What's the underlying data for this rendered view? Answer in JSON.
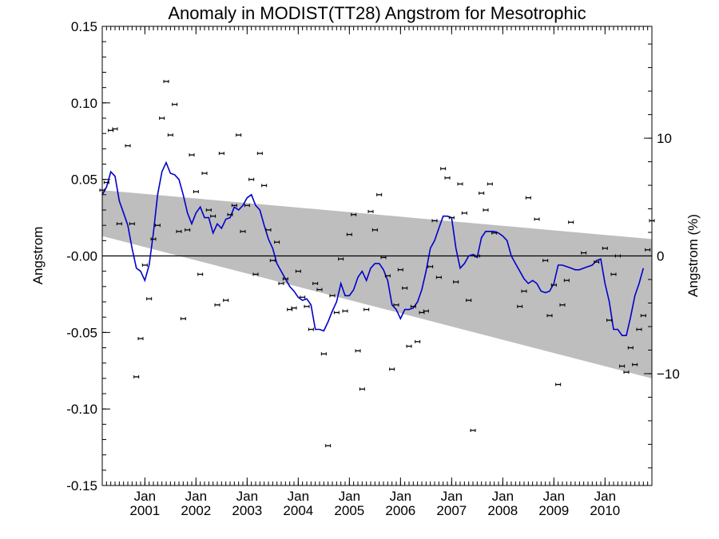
{
  "chart_data": {
    "type": "scatter",
    "title": "Anomaly in MODIST(TT28) Angstrom for Mesotrophic",
    "ylabel": "Angstrom",
    "ylabel_right": "Angstrom (%)",
    "xlim": [
      "2000-03-01",
      "2010-12-01"
    ],
    "ylim": [
      -0.15,
      0.15
    ],
    "ylim_right_percent": [
      -19.5,
      19.5
    ],
    "y_ticks": [
      0.15,
      0.1,
      0.05,
      0.0,
      -0.05,
      -0.1,
      -0.15
    ],
    "y_tick_labels": [
      "0.15",
      "0.10",
      "0.05",
      "-0.00",
      "-0.05",
      "-0.10",
      "-0.15"
    ],
    "y_right_ticks": [
      10,
      0,
      -10
    ],
    "y_right_tick_labels": [
      "10",
      "0",
      "−10"
    ],
    "x_ticks": [
      {
        "month": "Jan",
        "year": "2001",
        "date": "2001-01-01"
      },
      {
        "month": "Jan",
        "year": "2002",
        "date": "2002-01-01"
      },
      {
        "month": "Jan",
        "year": "2003",
        "date": "2003-01-01"
      },
      {
        "month": "Jan",
        "year": "2004",
        "date": "2004-01-01"
      },
      {
        "month": "Jan",
        "year": "2005",
        "date": "2005-01-01"
      },
      {
        "month": "Jan",
        "year": "2006",
        "date": "2006-01-01"
      },
      {
        "month": "Jan",
        "year": "2007",
        "date": "2007-01-01"
      },
      {
        "month": "Jan",
        "year": "2008",
        "date": "2008-01-01"
      },
      {
        "month": "Jan",
        "year": "2009",
        "date": "2009-01-01"
      },
      {
        "month": "Jan",
        "year": "2010",
        "date": "2010-01-01"
      }
    ],
    "zero_line": 0.0,
    "trend_band": {
      "upper": [
        {
          "x": "2000-03-01",
          "y": 0.043
        },
        {
          "x": "2010-12-01",
          "y": 0.011
        }
      ],
      "lower": [
        {
          "x": "2000-03-01",
          "y": 0.013
        },
        {
          "x": "2010-12-01",
          "y": -0.08
        }
      ],
      "color": "#bebebe"
    },
    "scatter_series": {
      "marker": "error-bar",
      "color": "#000000",
      "points": [
        {
          "x": "2000-03",
          "y": 0.043
        },
        {
          "x": "2000-04",
          "y": 0.048
        },
        {
          "x": "2000-05",
          "y": 0.082
        },
        {
          "x": "2000-06",
          "y": 0.083
        },
        {
          "x": "2000-07",
          "y": 0.021
        },
        {
          "x": "2000-09",
          "y": 0.072
        },
        {
          "x": "2000-10",
          "y": 0.021
        },
        {
          "x": "2000-11",
          "y": -0.079
        },
        {
          "x": "2000-12",
          "y": -0.054
        },
        {
          "x": "2001-01",
          "y": -0.006
        },
        {
          "x": "2001-02",
          "y": -0.028
        },
        {
          "x": "2001-03",
          "y": 0.011
        },
        {
          "x": "2001-04",
          "y": 0.02
        },
        {
          "x": "2001-05",
          "y": 0.09
        },
        {
          "x": "2001-06",
          "y": 0.114
        },
        {
          "x": "2001-07",
          "y": 0.079
        },
        {
          "x": "2001-08",
          "y": 0.099
        },
        {
          "x": "2001-09",
          "y": 0.016
        },
        {
          "x": "2001-10",
          "y": -0.041
        },
        {
          "x": "2001-11",
          "y": 0.017
        },
        {
          "x": "2001-12",
          "y": 0.066
        },
        {
          "x": "2002-01",
          "y": 0.042
        },
        {
          "x": "2002-02",
          "y": -0.012
        },
        {
          "x": "2002-03",
          "y": 0.054
        },
        {
          "x": "2002-04",
          "y": 0.03
        },
        {
          "x": "2002-05",
          "y": 0.026
        },
        {
          "x": "2002-06",
          "y": -0.032
        },
        {
          "x": "2002-07",
          "y": 0.067
        },
        {
          "x": "2002-08",
          "y": -0.029
        },
        {
          "x": "2002-09",
          "y": 0.027
        },
        {
          "x": "2002-10",
          "y": 0.033
        },
        {
          "x": "2002-11",
          "y": 0.079
        },
        {
          "x": "2002-12",
          "y": 0.016
        },
        {
          "x": "2003-01",
          "y": 0.033
        },
        {
          "x": "2003-02",
          "y": 0.05
        },
        {
          "x": "2003-03",
          "y": -0.012
        },
        {
          "x": "2003-04",
          "y": 0.067
        },
        {
          "x": "2003-05",
          "y": 0.046
        },
        {
          "x": "2003-06",
          "y": 0.017
        },
        {
          "x": "2003-07",
          "y": -0.003
        },
        {
          "x": "2003-08",
          "y": 0.009
        },
        {
          "x": "2003-09",
          "y": -0.018
        },
        {
          "x": "2003-10",
          "y": -0.015
        },
        {
          "x": "2003-11",
          "y": -0.035
        },
        {
          "x": "2003-12",
          "y": -0.034
        },
        {
          "x": "2004-01",
          "y": -0.01
        },
        {
          "x": "2004-02",
          "y": -0.027
        },
        {
          "x": "2004-03",
          "y": -0.033
        },
        {
          "x": "2004-04",
          "y": -0.048
        },
        {
          "x": "2004-05",
          "y": -0.018
        },
        {
          "x": "2004-06",
          "y": -0.022
        },
        {
          "x": "2004-07",
          "y": -0.064
        },
        {
          "x": "2004-08",
          "y": -0.124
        },
        {
          "x": "2004-09",
          "y": -0.026
        },
        {
          "x": "2004-10",
          "y": -0.037
        },
        {
          "x": "2004-11",
          "y": -0.002
        },
        {
          "x": "2004-12",
          "y": -0.036
        },
        {
          "x": "2005-01",
          "y": 0.014
        },
        {
          "x": "2005-02",
          "y": 0.027
        },
        {
          "x": "2005-03",
          "y": -0.062
        },
        {
          "x": "2005-04",
          "y": -0.087
        },
        {
          "x": "2005-05",
          "y": -0.035
        },
        {
          "x": "2005-06",
          "y": 0.029
        },
        {
          "x": "2005-07",
          "y": 0.017
        },
        {
          "x": "2005-08",
          "y": 0.04
        },
        {
          "x": "2005-09",
          "y": -0.001
        },
        {
          "x": "2005-10",
          "y": -0.013
        },
        {
          "x": "2005-11",
          "y": -0.074
        },
        {
          "x": "2005-12",
          "y": -0.032
        },
        {
          "x": "2006-01",
          "y": -0.009
        },
        {
          "x": "2006-02",
          "y": -0.021
        },
        {
          "x": "2006-03",
          "y": -0.059
        },
        {
          "x": "2006-04",
          "y": -0.033
        },
        {
          "x": "2006-05",
          "y": -0.056
        },
        {
          "x": "2006-06",
          "y": -0.037
        },
        {
          "x": "2006-07",
          "y": -0.036
        },
        {
          "x": "2006-08",
          "y": -0.007
        },
        {
          "x": "2006-09",
          "y": 0.023
        },
        {
          "x": "2006-10",
          "y": -0.014
        },
        {
          "x": "2006-11",
          "y": 0.057
        },
        {
          "x": "2006-12",
          "y": 0.051
        },
        {
          "x": "2007-01",
          "y": 0.025
        },
        {
          "x": "2007-02",
          "y": -0.017
        },
        {
          "x": "2007-03",
          "y": 0.047
        },
        {
          "x": "2007-04",
          "y": 0.028
        },
        {
          "x": "2007-05",
          "y": -0.029
        },
        {
          "x": "2007-06",
          "y": -0.114
        },
        {
          "x": "2007-07",
          "y": 0.0
        },
        {
          "x": "2007-08",
          "y": 0.041
        },
        {
          "x": "2007-09",
          "y": 0.03
        },
        {
          "x": "2007-10",
          "y": 0.047
        },
        {
          "x": "2007-11",
          "y": 0.015
        },
        {
          "x": "2008-05",
          "y": -0.033
        },
        {
          "x": "2008-06",
          "y": -0.023
        },
        {
          "x": "2008-07",
          "y": 0.038
        },
        {
          "x": "2008-09",
          "y": 0.024
        },
        {
          "x": "2008-11",
          "y": -0.003
        },
        {
          "x": "2008-12",
          "y": -0.039
        },
        {
          "x": "2009-01",
          "y": -0.019
        },
        {
          "x": "2009-02",
          "y": -0.084
        },
        {
          "x": "2009-03",
          "y": -0.032
        },
        {
          "x": "2009-04",
          "y": -0.016
        },
        {
          "x": "2009-05",
          "y": 0.022
        },
        {
          "x": "2009-08",
          "y": 0.002
        },
        {
          "x": "2009-11",
          "y": -0.004
        },
        {
          "x": "2010-01",
          "y": 0.005
        },
        {
          "x": "2010-02",
          "y": -0.042
        },
        {
          "x": "2010-03",
          "y": -0.012
        },
        {
          "x": "2010-04",
          "y": 0.0
        },
        {
          "x": "2010-05",
          "y": -0.072
        },
        {
          "x": "2010-06",
          "y": -0.076
        },
        {
          "x": "2010-07",
          "y": -0.06
        },
        {
          "x": "2010-08",
          "y": -0.071
        },
        {
          "x": "2010-09",
          "y": -0.048
        },
        {
          "x": "2010-10",
          "y": -0.039
        },
        {
          "x": "2010-11",
          "y": 0.004
        },
        {
          "x": "2010-12",
          "y": 0.023
        }
      ]
    },
    "line_series": {
      "color": "#0000cc",
      "points": [
        {
          "x": "2000-03",
          "y": 0.04
        },
        {
          "x": "2000-04",
          "y": 0.045
        },
        {
          "x": "2000-05",
          "y": 0.055
        },
        {
          "x": "2000-06",
          "y": 0.052
        },
        {
          "x": "2000-07",
          "y": 0.036
        },
        {
          "x": "2000-08",
          "y": 0.028
        },
        {
          "x": "2000-09",
          "y": 0.02
        },
        {
          "x": "2000-10",
          "y": 0.005
        },
        {
          "x": "2000-11",
          "y": -0.008
        },
        {
          "x": "2000-12",
          "y": -0.01
        },
        {
          "x": "2001-01",
          "y": -0.016
        },
        {
          "x": "2001-02",
          "y": -0.006
        },
        {
          "x": "2001-03",
          "y": 0.015
        },
        {
          "x": "2001-04",
          "y": 0.04
        },
        {
          "x": "2001-05",
          "y": 0.055
        },
        {
          "x": "2001-06",
          "y": 0.061
        },
        {
          "x": "2001-07",
          "y": 0.054
        },
        {
          "x": "2001-08",
          "y": 0.053
        },
        {
          "x": "2001-09",
          "y": 0.05
        },
        {
          "x": "2001-10",
          "y": 0.04
        },
        {
          "x": "2001-11",
          "y": 0.028
        },
        {
          "x": "2001-12",
          "y": 0.021
        },
        {
          "x": "2002-01",
          "y": 0.028
        },
        {
          "x": "2002-02",
          "y": 0.032
        },
        {
          "x": "2002-03",
          "y": 0.025
        },
        {
          "x": "2002-04",
          "y": 0.025
        },
        {
          "x": "2002-05",
          "y": 0.015
        },
        {
          "x": "2002-06",
          "y": 0.021
        },
        {
          "x": "2002-07",
          "y": 0.018
        },
        {
          "x": "2002-08",
          "y": 0.024
        },
        {
          "x": "2002-09",
          "y": 0.025
        },
        {
          "x": "2002-10",
          "y": 0.032
        },
        {
          "x": "2002-11",
          "y": 0.03
        },
        {
          "x": "2002-12",
          "y": 0.033
        },
        {
          "x": "2003-01",
          "y": 0.038
        },
        {
          "x": "2003-02",
          "y": 0.04
        },
        {
          "x": "2003-03",
          "y": 0.033
        },
        {
          "x": "2003-04",
          "y": 0.03
        },
        {
          "x": "2003-05",
          "y": 0.02
        },
        {
          "x": "2003-06",
          "y": 0.011
        },
        {
          "x": "2003-07",
          "y": 0.005
        },
        {
          "x": "2003-08",
          "y": -0.005
        },
        {
          "x": "2003-09",
          "y": -0.01
        },
        {
          "x": "2003-10",
          "y": -0.015
        },
        {
          "x": "2003-11",
          "y": -0.02
        },
        {
          "x": "2003-12",
          "y": -0.023
        },
        {
          "x": "2004-01",
          "y": -0.027
        },
        {
          "x": "2004-02",
          "y": -0.029
        },
        {
          "x": "2004-03",
          "y": -0.028
        },
        {
          "x": "2004-04",
          "y": -0.032
        },
        {
          "x": "2004-05",
          "y": -0.048
        },
        {
          "x": "2004-06",
          "y": -0.048
        },
        {
          "x": "2004-07",
          "y": -0.049
        },
        {
          "x": "2004-08",
          "y": -0.043
        },
        {
          "x": "2004-09",
          "y": -0.036
        },
        {
          "x": "2004-10",
          "y": -0.03
        },
        {
          "x": "2004-11",
          "y": -0.018
        },
        {
          "x": "2004-12",
          "y": -0.026
        },
        {
          "x": "2005-01",
          "y": -0.026
        },
        {
          "x": "2005-02",
          "y": -0.022
        },
        {
          "x": "2005-03",
          "y": -0.014
        },
        {
          "x": "2005-04",
          "y": -0.01
        },
        {
          "x": "2005-05",
          "y": -0.016
        },
        {
          "x": "2005-06",
          "y": -0.008
        },
        {
          "x": "2005-07",
          "y": -0.005
        },
        {
          "x": "2005-08",
          "y": -0.005
        },
        {
          "x": "2005-09",
          "y": -0.009
        },
        {
          "x": "2005-10",
          "y": -0.016
        },
        {
          "x": "2005-11",
          "y": -0.032
        },
        {
          "x": "2005-12",
          "y": -0.035
        },
        {
          "x": "2006-01",
          "y": -0.041
        },
        {
          "x": "2006-02",
          "y": -0.035
        },
        {
          "x": "2006-03",
          "y": -0.035
        },
        {
          "x": "2006-04",
          "y": -0.034
        },
        {
          "x": "2006-05",
          "y": -0.03
        },
        {
          "x": "2006-06",
          "y": -0.022
        },
        {
          "x": "2006-07",
          "y": -0.01
        },
        {
          "x": "2006-08",
          "y": 0.005
        },
        {
          "x": "2006-09",
          "y": 0.01
        },
        {
          "x": "2006-10",
          "y": 0.018
        },
        {
          "x": "2006-11",
          "y": 0.026
        },
        {
          "x": "2006-12",
          "y": 0.026
        },
        {
          "x": "2007-01",
          "y": 0.025
        },
        {
          "x": "2007-02",
          "y": 0.005
        },
        {
          "x": "2007-03",
          "y": -0.008
        },
        {
          "x": "2007-04",
          "y": -0.005
        },
        {
          "x": "2007-05",
          "y": 0.0
        },
        {
          "x": "2007-06",
          "y": 0.001
        },
        {
          "x": "2007-07",
          "y": -0.001
        },
        {
          "x": "2007-08",
          "y": 0.012
        },
        {
          "x": "2007-09",
          "y": 0.016
        },
        {
          "x": "2007-10",
          "y": 0.016
        },
        {
          "x": "2007-11",
          "y": 0.016
        },
        {
          "x": "2007-12",
          "y": 0.015
        },
        {
          "x": "2008-01",
          "y": 0.013
        },
        {
          "x": "2008-02",
          "y": 0.01
        },
        {
          "x": "2008-03",
          "y": 0.0
        },
        {
          "x": "2008-04",
          "y": -0.005
        },
        {
          "x": "2008-05",
          "y": -0.01
        },
        {
          "x": "2008-06",
          "y": -0.015
        },
        {
          "x": "2008-07",
          "y": -0.018
        },
        {
          "x": "2008-08",
          "y": -0.016
        },
        {
          "x": "2008-09",
          "y": -0.018
        },
        {
          "x": "2008-10",
          "y": -0.023
        },
        {
          "x": "2008-11",
          "y": -0.024
        },
        {
          "x": "2008-12",
          "y": -0.023
        },
        {
          "x": "2009-01",
          "y": -0.018
        },
        {
          "x": "2009-02",
          "y": -0.006
        },
        {
          "x": "2009-03",
          "y": -0.006
        },
        {
          "x": "2009-04",
          "y": -0.007
        },
        {
          "x": "2009-05",
          "y": -0.008
        },
        {
          "x": "2009-06",
          "y": -0.009
        },
        {
          "x": "2009-07",
          "y": -0.009
        },
        {
          "x": "2009-08",
          "y": -0.008
        },
        {
          "x": "2009-09",
          "y": -0.007
        },
        {
          "x": "2009-10",
          "y": -0.006
        },
        {
          "x": "2009-11",
          "y": -0.003
        },
        {
          "x": "2009-12",
          "y": -0.002
        },
        {
          "x": "2010-01",
          "y": -0.018
        },
        {
          "x": "2010-02",
          "y": -0.03
        },
        {
          "x": "2010-03",
          "y": -0.048
        },
        {
          "x": "2010-04",
          "y": -0.048
        },
        {
          "x": "2010-05",
          "y": -0.052
        },
        {
          "x": "2010-06",
          "y": -0.052
        },
        {
          "x": "2010-07",
          "y": -0.04
        },
        {
          "x": "2010-08",
          "y": -0.026
        },
        {
          "x": "2010-09",
          "y": -0.018
        },
        {
          "x": "2010-10",
          "y": -0.008
        }
      ]
    },
    "grid": false,
    "legend": "none"
  }
}
